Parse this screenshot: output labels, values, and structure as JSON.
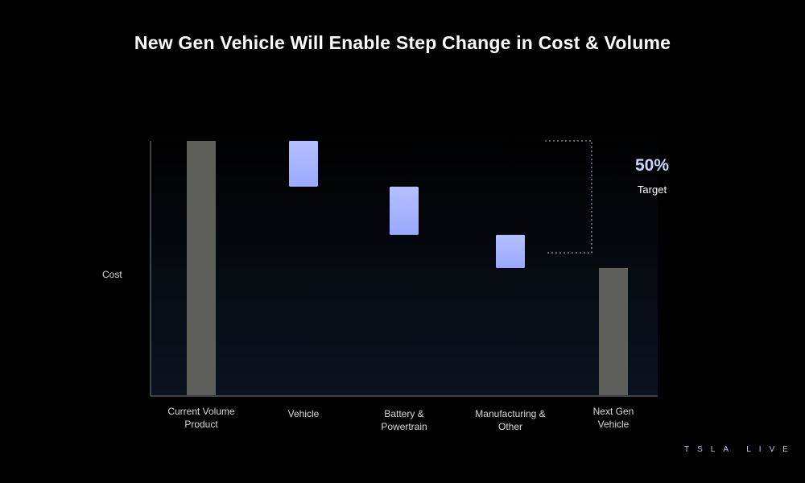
{
  "title": "New Gen Vehicle Will Enable Step Change in Cost & Volume",
  "brand": "TSLA LIVE",
  "colors": {
    "total_bar": "#5e5e5b",
    "step_bar": "#aab8ff",
    "bracket": "#8a8fa8",
    "axis": "#555555"
  },
  "chart_data": {
    "type": "bar",
    "subtype": "waterfall",
    "title": "New Gen Vehicle Will Enable Step Change in Cost & Volume",
    "ylabel": "Cost",
    "xlabel": "",
    "ylim": [
      0,
      100
    ],
    "categories": [
      [
        "Current Volume",
        "Product"
      ],
      [
        "Vehicle"
      ],
      [
        "Battery &",
        "Powertrain"
      ],
      [
        "Manufacturing &",
        "Other"
      ],
      [
        "Next Gen",
        "Vehicle"
      ]
    ],
    "bars": [
      {
        "kind": "total",
        "start": 0,
        "end": 100
      },
      {
        "kind": "reduction",
        "start": 100,
        "end": 82
      },
      {
        "kind": "reduction",
        "start": 82,
        "end": 63
      },
      {
        "kind": "reduction",
        "start": 63,
        "end": 50
      },
      {
        "kind": "total",
        "start": 0,
        "end": 50
      }
    ],
    "annotation": {
      "value": "50%",
      "label": "Target",
      "from": 100,
      "to": 56
    }
  }
}
